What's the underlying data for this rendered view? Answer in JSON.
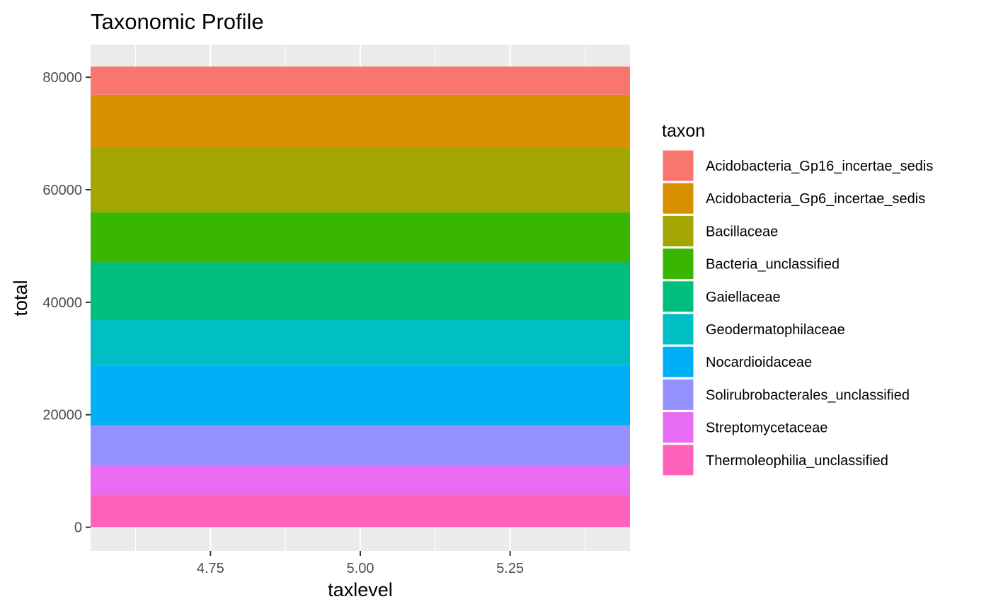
{
  "chart_data": {
    "type": "bar",
    "stacked": true,
    "title": "Taxonomic Profile",
    "xlabel": "taxlevel",
    "ylabel": "total",
    "x": 5,
    "xlim": [
      4.55,
      5.45
    ],
    "ylim": [
      -4200,
      85800
    ],
    "x_ticks": [
      4.75,
      5.0,
      5.25
    ],
    "x_tick_labels": [
      "4.75",
      "5.00",
      "5.25"
    ],
    "y_ticks": [
      0,
      20000,
      40000,
      60000,
      80000
    ],
    "y_tick_labels": [
      "0",
      "20000",
      "40000",
      "60000",
      "80000"
    ],
    "grid": true,
    "legend_title": "taxon",
    "legend_position": "right",
    "series": [
      {
        "name": "Acidobacteria_Gp16_incertae_sedis",
        "value": 5000,
        "color": "#F8766D"
      },
      {
        "name": "Acidobacteria_Gp6_incertae_sedis",
        "value": 9400,
        "color": "#D89000"
      },
      {
        "name": "Bacillaceae",
        "value": 11500,
        "color": "#A3A500"
      },
      {
        "name": "Bacteria_unclassified",
        "value": 8900,
        "color": "#39B600"
      },
      {
        "name": "Gaiellaceae",
        "value": 10200,
        "color": "#00BF7D"
      },
      {
        "name": "Geodermatophilaceae",
        "value": 8100,
        "color": "#00BFC4"
      },
      {
        "name": "Nocardioidaceae",
        "value": 10700,
        "color": "#00B0F6"
      },
      {
        "name": "Solirubrobacterales_unclassified",
        "value": 7100,
        "color": "#9590FF"
      },
      {
        "name": "Streptomycetaceae",
        "value": 5200,
        "color": "#E76BF3"
      },
      {
        "name": "Thermoleophilia_unclassified",
        "value": 5800,
        "color": "#FF62BC"
      }
    ]
  },
  "colors": {
    "panel_background": "#EBEBEB",
    "grid_major": "#FFFFFF",
    "text": "#000000",
    "tick_text": "#4D4D4D",
    "tick_mark": "#333333"
  }
}
